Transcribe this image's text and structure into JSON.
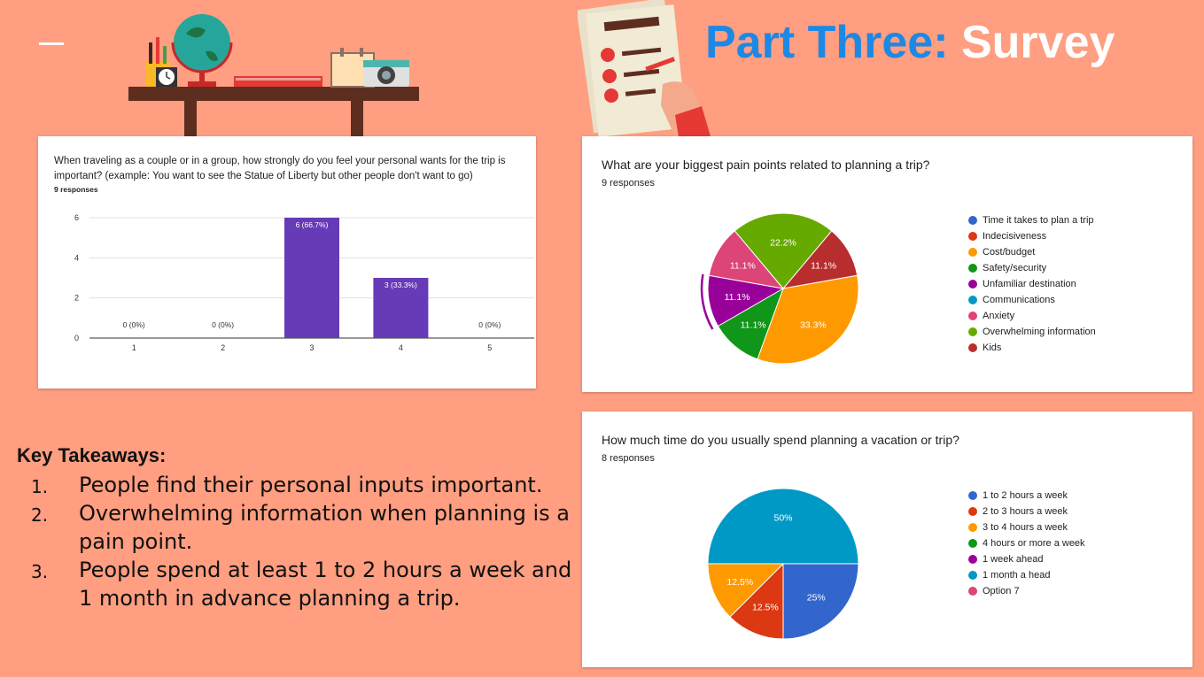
{
  "slide": {
    "title_part1": "Part Three:",
    "title_part2": "Survey",
    "colors": {
      "background": "#FF9E80",
      "title_blue": "#1E88E5"
    }
  },
  "takeaways": {
    "heading": "Key Takeaways:",
    "items": [
      {
        "num": "1.",
        "text": "People find their personal inputs important."
      },
      {
        "num": "2.",
        "text": "Overwhelming information when planning is a pain point."
      },
      {
        "num": "3.",
        "text": "People spend at least 1 to 2 hours a week and 1 month in advance planning a trip."
      }
    ]
  },
  "icons": {
    "desk": "desk-illustration-icon",
    "survey": "survey-clipboard-icon"
  },
  "chart_data": [
    {
      "type": "bar",
      "title": "When traveling as a couple or in a group, how strongly do you feel your personal wants for the trip is important? (example: You want to see the Statue of Liberty but other people don't want to go)",
      "responses": "9 responses",
      "categories": [
        "1",
        "2",
        "3",
        "4",
        "5"
      ],
      "values": [
        0,
        0,
        6,
        3,
        0
      ],
      "labels": [
        "0 (0%)",
        "0 (0%)",
        "6 (66.7%)",
        "3 (33.3%)",
        "0 (0%)"
      ],
      "yticks": [
        "0",
        "2",
        "4",
        "6"
      ],
      "ylim": [
        0,
        6
      ],
      "color": "#673AB7"
    },
    {
      "type": "pie",
      "title": "What are your biggest pain points related to planning a trip?",
      "responses": "9 responses",
      "legend": [
        "Time it takes to plan a trip",
        "Indecisiveness",
        "Cost/budget",
        "Safety/security",
        "Unfamiliar destination",
        "Communications",
        "Anxiety",
        "Overwhelming information",
        "Kids"
      ],
      "legend_colors": [
        "#3366CC",
        "#DC3912",
        "#FF9900",
        "#109618",
        "#990099",
        "#0099C6",
        "#DD4477",
        "#66AA00",
        "#B82E2E"
      ],
      "slices": [
        {
          "name": "Kids",
          "value": 1,
          "label": "11.1%",
          "color": "#B82E2E"
        },
        {
          "name": "Cost/budget",
          "value": 3,
          "label": "33.3%",
          "color": "#FF9900"
        },
        {
          "name": "Safety/security",
          "value": 1,
          "label": "11.1%",
          "color": "#109618"
        },
        {
          "name": "Unfamiliar destination",
          "value": 1,
          "label": "11.1%",
          "color": "#990099"
        },
        {
          "name": "Anxiety",
          "value": 1,
          "label": "11.1%",
          "color": "#DD4477"
        },
        {
          "name": "Overwhelming information",
          "value": 2,
          "label": "22.2%",
          "color": "#66AA00"
        }
      ]
    },
    {
      "type": "pie",
      "title": "How much time do you usually spend planning a vacation or trip?",
      "responses": "8 responses",
      "legend": [
        "1 to 2 hours a week",
        "2 to 3 hours a week",
        "3 to 4 hours a week",
        "4 hours or more a week",
        "1 week ahead",
        "1 month a head",
        "Option 7"
      ],
      "legend_colors": [
        "#3366CC",
        "#DC3912",
        "#FF9900",
        "#109618",
        "#990099",
        "#0099C6",
        "#DD4477"
      ],
      "slices": [
        {
          "name": "1 to 2 hours a week",
          "value": 2,
          "label": "25%",
          "color": "#3366CC"
        },
        {
          "name": "2 to 3 hours a week",
          "value": 1,
          "label": "12.5%",
          "color": "#DC3912"
        },
        {
          "name": "3 to 4 hours a week",
          "value": 1,
          "label": "12.5%",
          "color": "#FF9900"
        },
        {
          "name": "1 month a head",
          "value": 4,
          "label": "50%",
          "color": "#0099C6"
        }
      ]
    }
  ]
}
